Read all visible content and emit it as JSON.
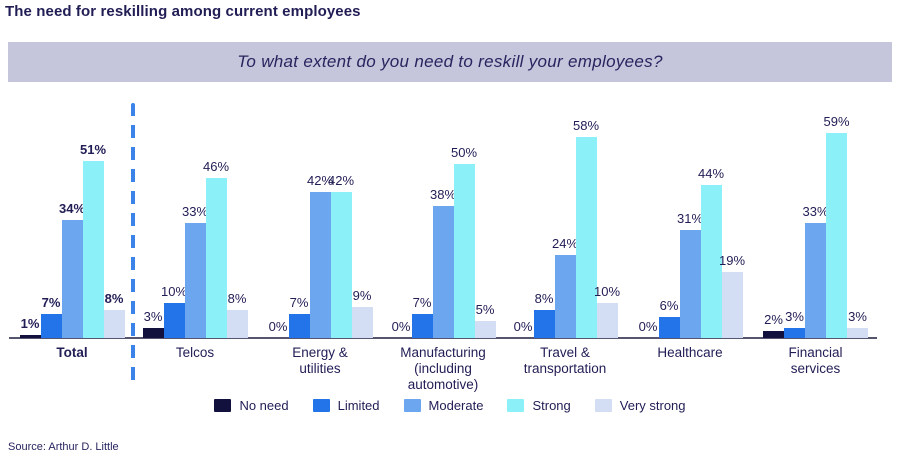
{
  "title": "The need for reskilling among current employees",
  "question": "To what extent do you need to reskill your employees?",
  "source": "Source: Arthur D. Little",
  "chart_data": {
    "type": "bar",
    "title": "The need for reskilling among current employees",
    "subtitle": "To what extent do you need to reskill your employees?",
    "categories": [
      "Total",
      "Telcos",
      "Energy &\nutilities",
      "Manufacturing\n(including\nautomotive)",
      "Travel &\ntransportation",
      "Healthcare",
      "Financial\nservices"
    ],
    "series": [
      {
        "name": "No need",
        "color": "#12103d",
        "values": [
          1,
          3,
          0,
          0,
          0,
          0,
          2
        ]
      },
      {
        "name": "Limited",
        "color": "#2374e8",
        "values": [
          7,
          10,
          7,
          7,
          8,
          6,
          3
        ]
      },
      {
        "name": "Moderate",
        "color": "#6ca6ee",
        "values": [
          34,
          33,
          42,
          38,
          24,
          31,
          33
        ]
      },
      {
        "name": "Strong",
        "color": "#8bf0f8",
        "values": [
          51,
          46,
          42,
          50,
          58,
          44,
          59
        ]
      },
      {
        "name": "Very strong",
        "color": "#d3def5",
        "values": [
          8,
          8,
          9,
          5,
          10,
          19,
          3
        ]
      }
    ],
    "value_suffix": "%",
    "ylim": [
      0,
      60
    ],
    "grid": false,
    "legend_position": "bottom",
    "emphasized_category": "Total",
    "divider_after_category": "Total",
    "divider_color": "#3b82e9",
    "axis_color": "#55556e",
    "label_color": "#211d55",
    "banner_background": "#c5c5dc"
  }
}
